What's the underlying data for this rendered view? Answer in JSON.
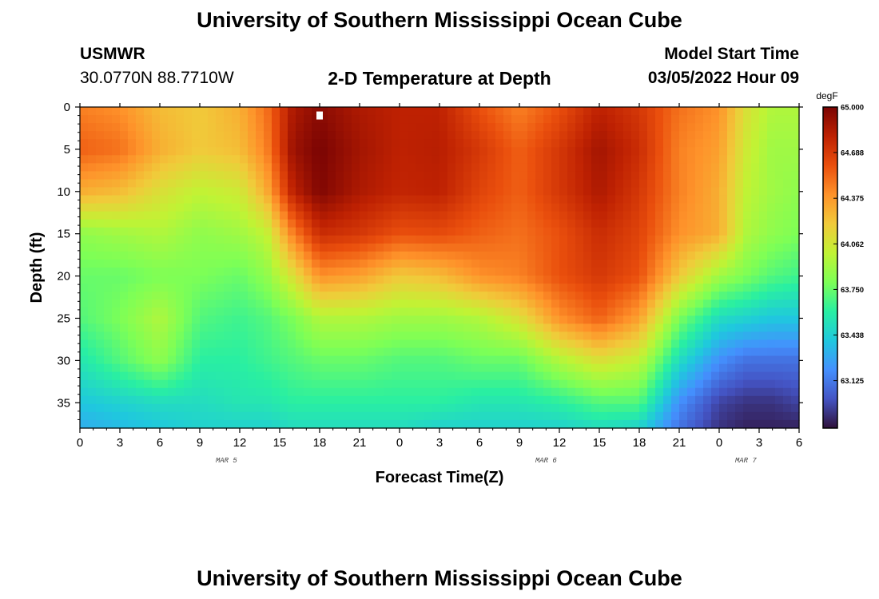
{
  "header": {
    "title": "University of Southern Mississippi Ocean Cube",
    "station": "USMWR",
    "coords": "30.0770N  88.7710W",
    "subtitle": "2-D Temperature at Depth",
    "model_start_label": "Model Start Time",
    "model_start_value": "03/05/2022 Hour 09"
  },
  "footer": {
    "title": "University of Southern Mississippi Ocean Cube"
  },
  "colors": {
    "scale": [
      "#30123b",
      "#4454c4",
      "#4490fe",
      "#1fc8de",
      "#29efa2",
      "#7dff56",
      "#c1f334",
      "#f1ca3a",
      "#fe922a",
      "#ea4f0d",
      "#be2102",
      "#7a0403"
    ]
  },
  "chart_data": {
    "type": "heatmap",
    "title": "2-D Temperature at Depth",
    "xlabel": "Forecast Time(Z)",
    "ylabel": "Depth (ft)",
    "x_tick_labels": [
      "0",
      "3",
      "6",
      "9",
      "12",
      "15",
      "18",
      "21",
      "0",
      "3",
      "6",
      "9",
      "12",
      "15",
      "18",
      "21",
      "0",
      "3",
      "6"
    ],
    "x_date_labels": [
      {
        "label": "MAR 5",
        "at_hour": 11
      },
      {
        "label": "MAR 6",
        "at_hour": 35
      },
      {
        "label": "MAR 7",
        "at_hour": 50
      }
    ],
    "xlim_hours": [
      0,
      54
    ],
    "y_ticks": [
      0,
      5,
      10,
      15,
      20,
      25,
      30,
      35
    ],
    "ylim_ft": [
      0,
      38
    ],
    "colorbar": {
      "unit": "degF",
      "tick_labels": [
        "65.000",
        "64.688",
        "64.375",
        "64.062",
        "63.750",
        "63.438",
        "63.125"
      ],
      "vmin": 62.8,
      "vmax": 65.0
    },
    "marker": {
      "hour": 18,
      "depth_ft": 1
    },
    "profile_hours": [
      0,
      3,
      6,
      9,
      12,
      14,
      16,
      18,
      21,
      24,
      27,
      30,
      33,
      36,
      39,
      42,
      45,
      48,
      50,
      52,
      54
    ],
    "profile_depths_ft": [
      0,
      5,
      10,
      15,
      20,
      25,
      30,
      35,
      38
    ],
    "temperature_degF": [
      [
        64.45,
        64.55,
        64.3,
        63.85,
        63.75,
        63.7,
        63.55,
        63.4,
        63.3
      ],
      [
        64.4,
        64.5,
        64.25,
        63.9,
        63.75,
        63.8,
        63.7,
        63.45,
        63.35
      ],
      [
        64.25,
        64.3,
        64.1,
        63.95,
        63.8,
        63.95,
        63.85,
        63.5,
        63.4
      ],
      [
        64.2,
        64.2,
        64.0,
        63.85,
        63.8,
        63.7,
        63.6,
        63.5,
        63.45
      ],
      [
        64.3,
        64.25,
        64.05,
        63.9,
        63.75,
        63.65,
        63.6,
        63.55,
        63.45
      ],
      [
        64.5,
        64.45,
        64.3,
        64.0,
        63.85,
        63.7,
        63.65,
        63.55,
        63.45
      ],
      [
        64.85,
        64.9,
        64.8,
        64.45,
        64.1,
        63.8,
        63.7,
        63.6,
        63.5
      ],
      [
        64.95,
        65.0,
        64.98,
        64.75,
        64.4,
        63.95,
        63.75,
        63.6,
        63.5
      ],
      [
        64.85,
        64.88,
        64.85,
        64.7,
        64.35,
        63.95,
        63.75,
        63.6,
        63.5
      ],
      [
        64.8,
        64.8,
        64.78,
        64.6,
        64.2,
        63.9,
        63.7,
        63.6,
        63.5
      ],
      [
        64.8,
        64.82,
        64.8,
        64.62,
        64.25,
        63.9,
        63.7,
        63.6,
        63.45
      ],
      [
        64.6,
        64.7,
        64.65,
        64.55,
        64.4,
        63.95,
        63.75,
        63.55,
        63.45
      ],
      [
        64.45,
        64.55,
        64.55,
        64.5,
        64.45,
        64.1,
        63.75,
        63.55,
        63.45
      ],
      [
        64.6,
        64.7,
        64.7,
        64.6,
        64.6,
        64.4,
        63.95,
        63.6,
        63.45
      ],
      [
        64.8,
        64.88,
        64.85,
        64.75,
        64.7,
        64.55,
        64.1,
        63.7,
        63.5
      ],
      [
        64.7,
        64.75,
        64.7,
        64.65,
        64.6,
        64.35,
        64.0,
        63.7,
        63.45
      ],
      [
        64.5,
        64.45,
        64.45,
        64.4,
        64.2,
        63.8,
        63.5,
        63.2,
        63.1
      ],
      [
        64.4,
        64.35,
        64.3,
        64.3,
        63.9,
        63.5,
        63.2,
        62.95,
        62.9
      ],
      [
        64.1,
        64.05,
        64.0,
        63.95,
        63.8,
        63.45,
        63.1,
        62.9,
        62.85
      ],
      [
        63.95,
        63.9,
        63.9,
        63.85,
        63.7,
        63.4,
        63.1,
        62.9,
        62.85
      ],
      [
        63.95,
        63.9,
        63.85,
        63.8,
        63.65,
        63.4,
        63.1,
        62.95,
        62.85
      ]
    ]
  }
}
